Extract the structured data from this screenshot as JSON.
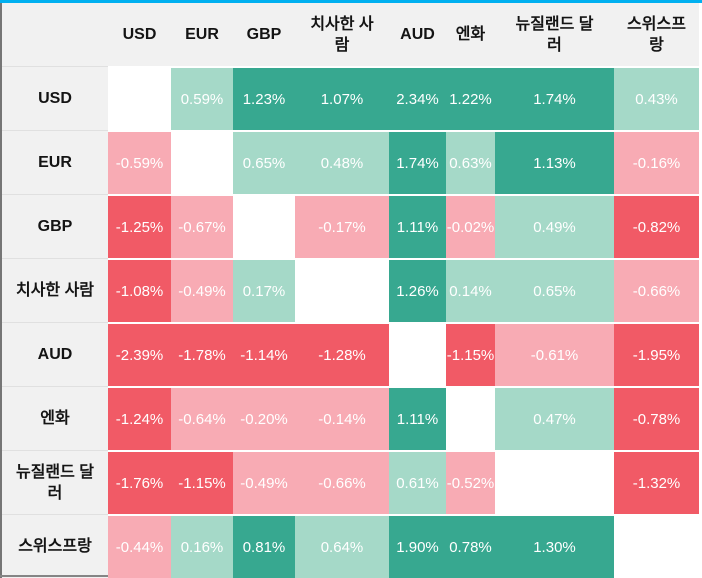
{
  "chart_data": {
    "type": "heatmap",
    "title": "",
    "columns": [
      "USD",
      "EUR",
      "GBP",
      "치사한 사람",
      "AUD",
      "엔화",
      "뉴질랜드 달러",
      "스위스프랑"
    ],
    "rows": [
      "USD",
      "EUR",
      "GBP",
      "치사한 사람",
      "AUD",
      "엔화",
      "뉴질랜드 달러",
      "스위스프랑"
    ],
    "values": [
      [
        null,
        0.59,
        1.23,
        1.07,
        2.34,
        1.22,
        1.74,
        0.43
      ],
      [
        -0.59,
        null,
        0.65,
        0.48,
        1.74,
        0.63,
        1.13,
        -0.16
      ],
      [
        -1.25,
        -0.67,
        null,
        -0.17,
        1.11,
        -0.02,
        0.49,
        -0.82
      ],
      [
        -1.08,
        -0.49,
        0.17,
        null,
        1.26,
        0.14,
        0.65,
        -0.66
      ],
      [
        -2.39,
        -1.78,
        -1.14,
        -1.28,
        null,
        -1.15,
        -0.61,
        -1.95
      ],
      [
        -1.24,
        -0.64,
        -0.2,
        -0.14,
        1.11,
        null,
        0.47,
        -0.78
      ],
      [
        -1.76,
        -1.15,
        -0.49,
        -0.66,
        0.61,
        -0.52,
        null,
        -1.32
      ],
      [
        -0.44,
        0.16,
        0.81,
        0.64,
        1.9,
        0.78,
        1.3,
        null
      ]
    ],
    "value_suffix": "%",
    "colors": {
      "strong_positive": "#37a890",
      "light_positive": "#a5d9c8",
      "strong_negative": "#f15a66",
      "light_negative": "#f8abb4",
      "empty": "#ffffff",
      "header_background": "#f1f1f1",
      "top_border": "#00b0f0",
      "value_text": "#ffffff",
      "label_text": "#141414"
    },
    "color_rule": {
      "strong_abs_threshold": 0.7
    }
  }
}
